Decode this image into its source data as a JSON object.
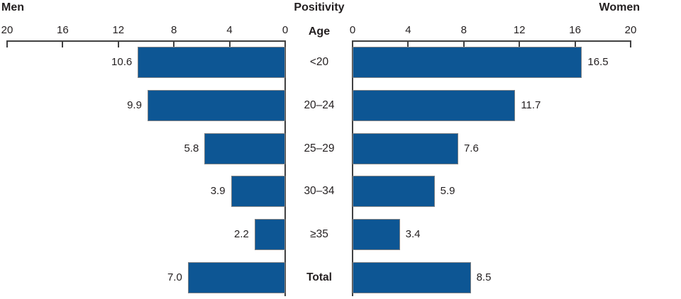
{
  "header": {
    "left": "Men",
    "center": "Positivity",
    "right": "Women",
    "age": "Age"
  },
  "chart_data": {
    "type": "bar",
    "layout": "bilateral-horizontal (tornado / population-pyramid style)",
    "title": "Positivity",
    "left_series_header": "Men",
    "right_series_header": "Women",
    "age_column_header": "Age",
    "categories": [
      "<20",
      "20–24",
      "25–29",
      "30–34",
      "≥35",
      "Total"
    ],
    "bold_categories": [
      "Total"
    ],
    "series": [
      {
        "name": "Men",
        "side": "left",
        "values": [
          10.6,
          9.9,
          5.8,
          3.9,
          2.2,
          7.0
        ],
        "labels": [
          "10.6",
          "9.9",
          "5.8",
          "3.9",
          "2.2",
          "7.0"
        ]
      },
      {
        "name": "Women",
        "side": "right",
        "values": [
          16.5,
          11.7,
          7.6,
          5.9,
          3.4,
          8.5
        ],
        "labels": [
          "16.5",
          "11.7",
          "7.6",
          "5.9",
          "3.4",
          "8.5"
        ]
      }
    ],
    "axis": {
      "ticks": [
        0,
        4,
        8,
        12,
        16,
        20
      ],
      "max": 20,
      "grid": false
    },
    "colors": {
      "bar_fill": "#0d5694",
      "bar_border": "#7f8285",
      "axis": "#414142",
      "text": "#231f20"
    }
  }
}
